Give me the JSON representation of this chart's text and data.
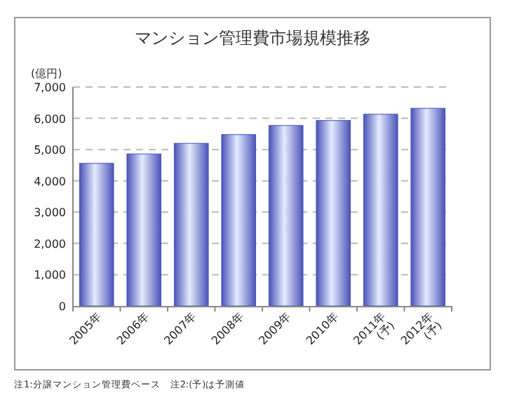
{
  "chart_data": {
    "type": "bar",
    "title": "マンション管理費市場規模推移",
    "ylabel": "(億円)",
    "categories": [
      "2005年",
      "2006年",
      "2007年",
      "2008年",
      "2009年",
      "2010年",
      "2011年(予)",
      "2012年(予)"
    ],
    "values": [
      4560,
      4860,
      5200,
      5480,
      5770,
      5930,
      6130,
      6320
    ],
    "color": "#4a53b8",
    "ylim": [
      0,
      7000
    ],
    "yticks": [
      {
        "value": 0,
        "label": "0"
      },
      {
        "value": 1000,
        "label": "1,000"
      },
      {
        "value": 2000,
        "label": "2,000"
      },
      {
        "value": 3000,
        "label": "3,000"
      },
      {
        "value": 4000,
        "label": "4,000"
      },
      {
        "value": 5000,
        "label": "5,000"
      },
      {
        "value": 6000,
        "label": "6,000"
      },
      {
        "value": 7000,
        "label": "7,000"
      }
    ],
    "grid": "y",
    "annotations": [
      "注1:分譲マンション管理費ベース　注2:(予)は予測値"
    ]
  }
}
